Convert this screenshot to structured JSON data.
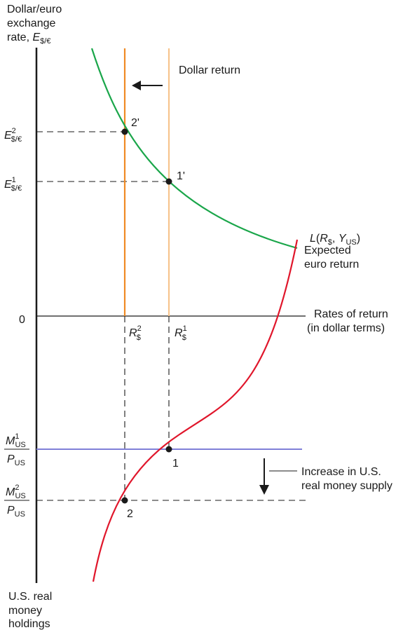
{
  "axes": {
    "top_y_label": [
      "Dollar/euro",
      "exchange"
    ],
    "top_y_label_rate": "rate, ",
    "top_y_label_symbol": "E",
    "top_y_label_sub": "$/€",
    "x_label": [
      "Rates of return",
      "(in dollar terms)"
    ],
    "bottom_y_label": [
      "U.S. real",
      "money",
      "holdings"
    ],
    "origin": "0"
  },
  "curves": {
    "dollar_return_label": "Dollar return",
    "expected_euro_return_label": [
      "Expected",
      "euro return"
    ],
    "money_demand": {
      "L": "L",
      "open": "(",
      "R": "R",
      "R_sub": "$",
      "comma": ", ",
      "Y": "Y",
      "Y_sub": "US",
      "close": ")"
    }
  },
  "points": {
    "p1_prime": "1'",
    "p2_prime": "2'",
    "p1": "1",
    "p2": "2"
  },
  "ticks": {
    "E2": {
      "base": "E",
      "sup": "2",
      "sub": "$/€"
    },
    "E1": {
      "base": "E",
      "sup": "1",
      "sub": "$/€"
    },
    "R2": {
      "base": "R",
      "sup": "2",
      "sub": "$"
    },
    "R1": {
      "base": "R",
      "sup": "1",
      "sub": "$"
    },
    "M1": {
      "num": "M",
      "num_sup": "1",
      "num_sub": "US",
      "den": "P",
      "den_sub": "US"
    },
    "M2": {
      "num": "M",
      "num_sup": "2",
      "num_sub": "US",
      "den": "P",
      "den_sub": "US"
    }
  },
  "annotation": [
    "Increase in U.S.",
    "real money supply"
  ],
  "colors": {
    "axis": "#1a1a1a",
    "euro_return": "#1aa64a",
    "dollar_return_new": "#f08a24",
    "dollar_return_old": "#f7c48d",
    "money_demand": "#e0162b",
    "money_supply": "#8080d8",
    "dashed": "#1a1a1a"
  }
}
